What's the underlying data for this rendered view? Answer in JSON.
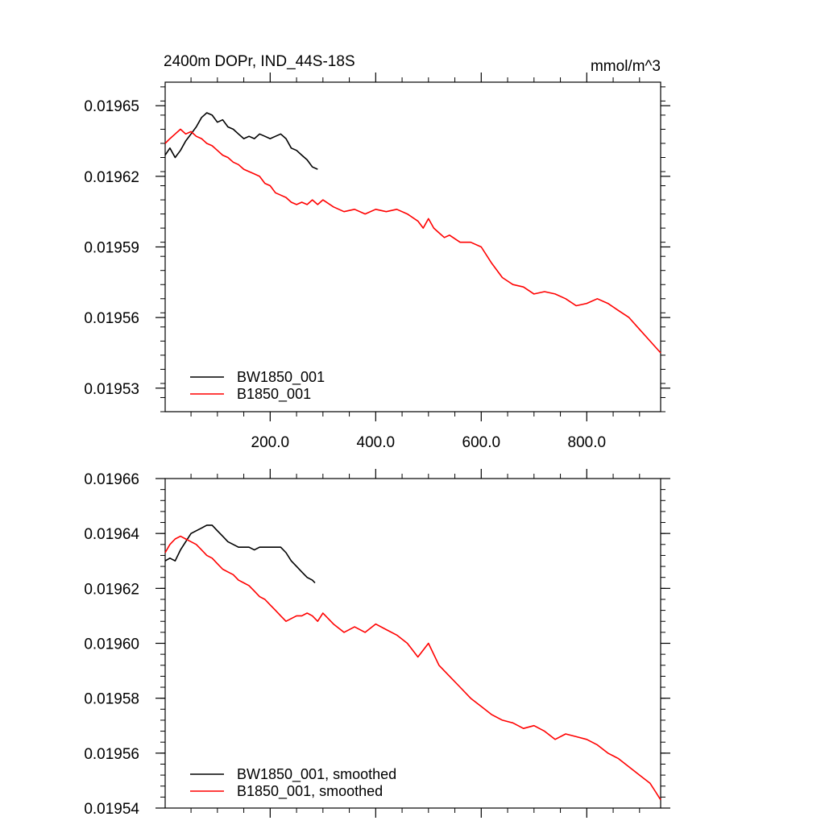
{
  "chart_data": [
    {
      "type": "line",
      "title": "2400m DOPr, IND_44S-18S",
      "units": "mmol/m^3",
      "xlabel": "",
      "ylabel": "",
      "xlim": [
        1,
        940
      ],
      "ylim": [
        0.01952,
        0.01966
      ],
      "x_ticks": [
        200,
        400,
        600,
        800
      ],
      "x_tick_labels": [
        "200.0",
        "400.0",
        "600.0",
        "800.0"
      ],
      "y_ticks": [
        0.01953,
        0.01956,
        0.01959,
        0.01962,
        0.01965
      ],
      "y_tick_labels": [
        "0.01953",
        "0.01956",
        "0.01959",
        "0.01962",
        "0.01965"
      ],
      "grid": false,
      "legend_position": "bottom-left",
      "series": [
        {
          "name": "BW1850_001",
          "color": "#000000",
          "x": [
            1,
            10,
            20,
            30,
            40,
            50,
            60,
            70,
            80,
            90,
            100,
            110,
            120,
            130,
            140,
            150,
            160,
            170,
            180,
            190,
            200,
            210,
            220,
            230,
            240,
            250,
            260,
            270,
            280,
            290
          ],
          "y": [
            0.019629,
            0.019632,
            0.019628,
            0.019631,
            0.019635,
            0.019638,
            0.019641,
            0.019645,
            0.019647,
            0.019646,
            0.019643,
            0.019644,
            0.019641,
            0.01964,
            0.019638,
            0.019636,
            0.019637,
            0.019636,
            0.019638,
            0.019637,
            0.019636,
            0.019637,
            0.019638,
            0.019636,
            0.019632,
            0.019631,
            0.019629,
            0.019627,
            0.019624,
            0.019623
          ]
        },
        {
          "name": "B1850_001",
          "color": "#ff0000",
          "x": [
            1,
            10,
            20,
            30,
            40,
            50,
            60,
            70,
            80,
            90,
            100,
            110,
            120,
            130,
            140,
            150,
            160,
            170,
            180,
            190,
            200,
            210,
            220,
            230,
            240,
            250,
            260,
            270,
            280,
            290,
            300,
            320,
            340,
            360,
            380,
            400,
            420,
            440,
            460,
            480,
            490,
            500,
            510,
            520,
            530,
            540,
            560,
            580,
            600,
            620,
            640,
            660,
            680,
            700,
            720,
            740,
            760,
            780,
            800,
            820,
            840,
            860,
            880,
            900,
            920,
            940
          ],
          "y": [
            0.019634,
            0.019636,
            0.019638,
            0.01964,
            0.019638,
            0.019639,
            0.019637,
            0.019636,
            0.019634,
            0.019633,
            0.019631,
            0.019629,
            0.019628,
            0.019626,
            0.019625,
            0.019623,
            0.019622,
            0.019621,
            0.01962,
            0.019617,
            0.019616,
            0.019613,
            0.019612,
            0.019611,
            0.019609,
            0.019608,
            0.019609,
            0.019608,
            0.01961,
            0.019608,
            0.01961,
            0.019607,
            0.019605,
            0.019606,
            0.019604,
            0.019606,
            0.019605,
            0.019606,
            0.019604,
            0.019601,
            0.019598,
            0.019602,
            0.019598,
            0.019596,
            0.019594,
            0.019595,
            0.019592,
            0.019592,
            0.01959,
            0.019583,
            0.019577,
            0.019574,
            0.019573,
            0.01957,
            0.019571,
            0.01957,
            0.019568,
            0.019565,
            0.019566,
            0.019568,
            0.019566,
            0.019563,
            0.01956,
            0.019555,
            0.01955,
            0.019545
          ]
        }
      ]
    },
    {
      "type": "line",
      "title": "",
      "xlabel": "",
      "ylabel": "",
      "xlim": [
        1,
        940
      ],
      "ylim": [
        0.01954,
        0.01966
      ],
      "x_ticks": [
        200,
        400,
        600,
        800
      ],
      "y_ticks": [
        0.01954,
        0.01956,
        0.01958,
        0.0196,
        0.01962,
        0.01964,
        0.01966
      ],
      "y_tick_labels": [
        "0.01954",
        "0.01956",
        "0.01958",
        "0.01960",
        "0.01962",
        "0.01964",
        "0.01966"
      ],
      "grid": false,
      "legend_position": "bottom-left",
      "series": [
        {
          "name": "BW1850_001, smoothed",
          "color": "#000000",
          "x": [
            1,
            10,
            20,
            30,
            40,
            50,
            60,
            70,
            80,
            90,
            100,
            110,
            120,
            130,
            140,
            150,
            160,
            170,
            180,
            190,
            200,
            210,
            220,
            230,
            240,
            250,
            260,
            270,
            280,
            285
          ],
          "y": [
            0.01963,
            0.019631,
            0.01963,
            0.019634,
            0.019637,
            0.01964,
            0.019641,
            0.019642,
            0.019643,
            0.019643,
            0.019641,
            0.019639,
            0.019637,
            0.019636,
            0.019635,
            0.019635,
            0.019635,
            0.019634,
            0.019635,
            0.019635,
            0.019635,
            0.019635,
            0.019635,
            0.019633,
            0.01963,
            0.019628,
            0.019626,
            0.019624,
            0.019623,
            0.019622
          ]
        },
        {
          "name": "B1850_001, smoothed",
          "color": "#ff0000",
          "x": [
            1,
            10,
            20,
            30,
            40,
            50,
            60,
            70,
            80,
            90,
            100,
            110,
            120,
            130,
            140,
            150,
            160,
            170,
            180,
            190,
            200,
            210,
            220,
            230,
            240,
            250,
            260,
            270,
            280,
            290,
            300,
            320,
            340,
            360,
            380,
            400,
            420,
            440,
            460,
            480,
            500,
            520,
            540,
            560,
            580,
            600,
            620,
            640,
            660,
            680,
            700,
            720,
            740,
            760,
            780,
            800,
            820,
            840,
            860,
            880,
            900,
            920,
            930,
            940
          ],
          "y": [
            0.019633,
            0.019636,
            0.019638,
            0.019639,
            0.019638,
            0.019637,
            0.019636,
            0.019634,
            0.019632,
            0.019631,
            0.019629,
            0.019627,
            0.019626,
            0.019625,
            0.019623,
            0.019622,
            0.019621,
            0.019619,
            0.019617,
            0.019616,
            0.019614,
            0.019612,
            0.01961,
            0.019608,
            0.019609,
            0.01961,
            0.01961,
            0.019611,
            0.01961,
            0.019608,
            0.019611,
            0.019607,
            0.019604,
            0.019606,
            0.019604,
            0.019607,
            0.019605,
            0.019603,
            0.0196,
            0.019595,
            0.0196,
            0.019592,
            0.019588,
            0.019584,
            0.01958,
            0.019577,
            0.019574,
            0.019572,
            0.019571,
            0.019569,
            0.01957,
            0.019568,
            0.019565,
            0.019567,
            0.019566,
            0.019565,
            0.019563,
            0.01956,
            0.019558,
            0.019555,
            0.019552,
            0.019549,
            0.019546,
            0.019543
          ]
        }
      ]
    }
  ]
}
